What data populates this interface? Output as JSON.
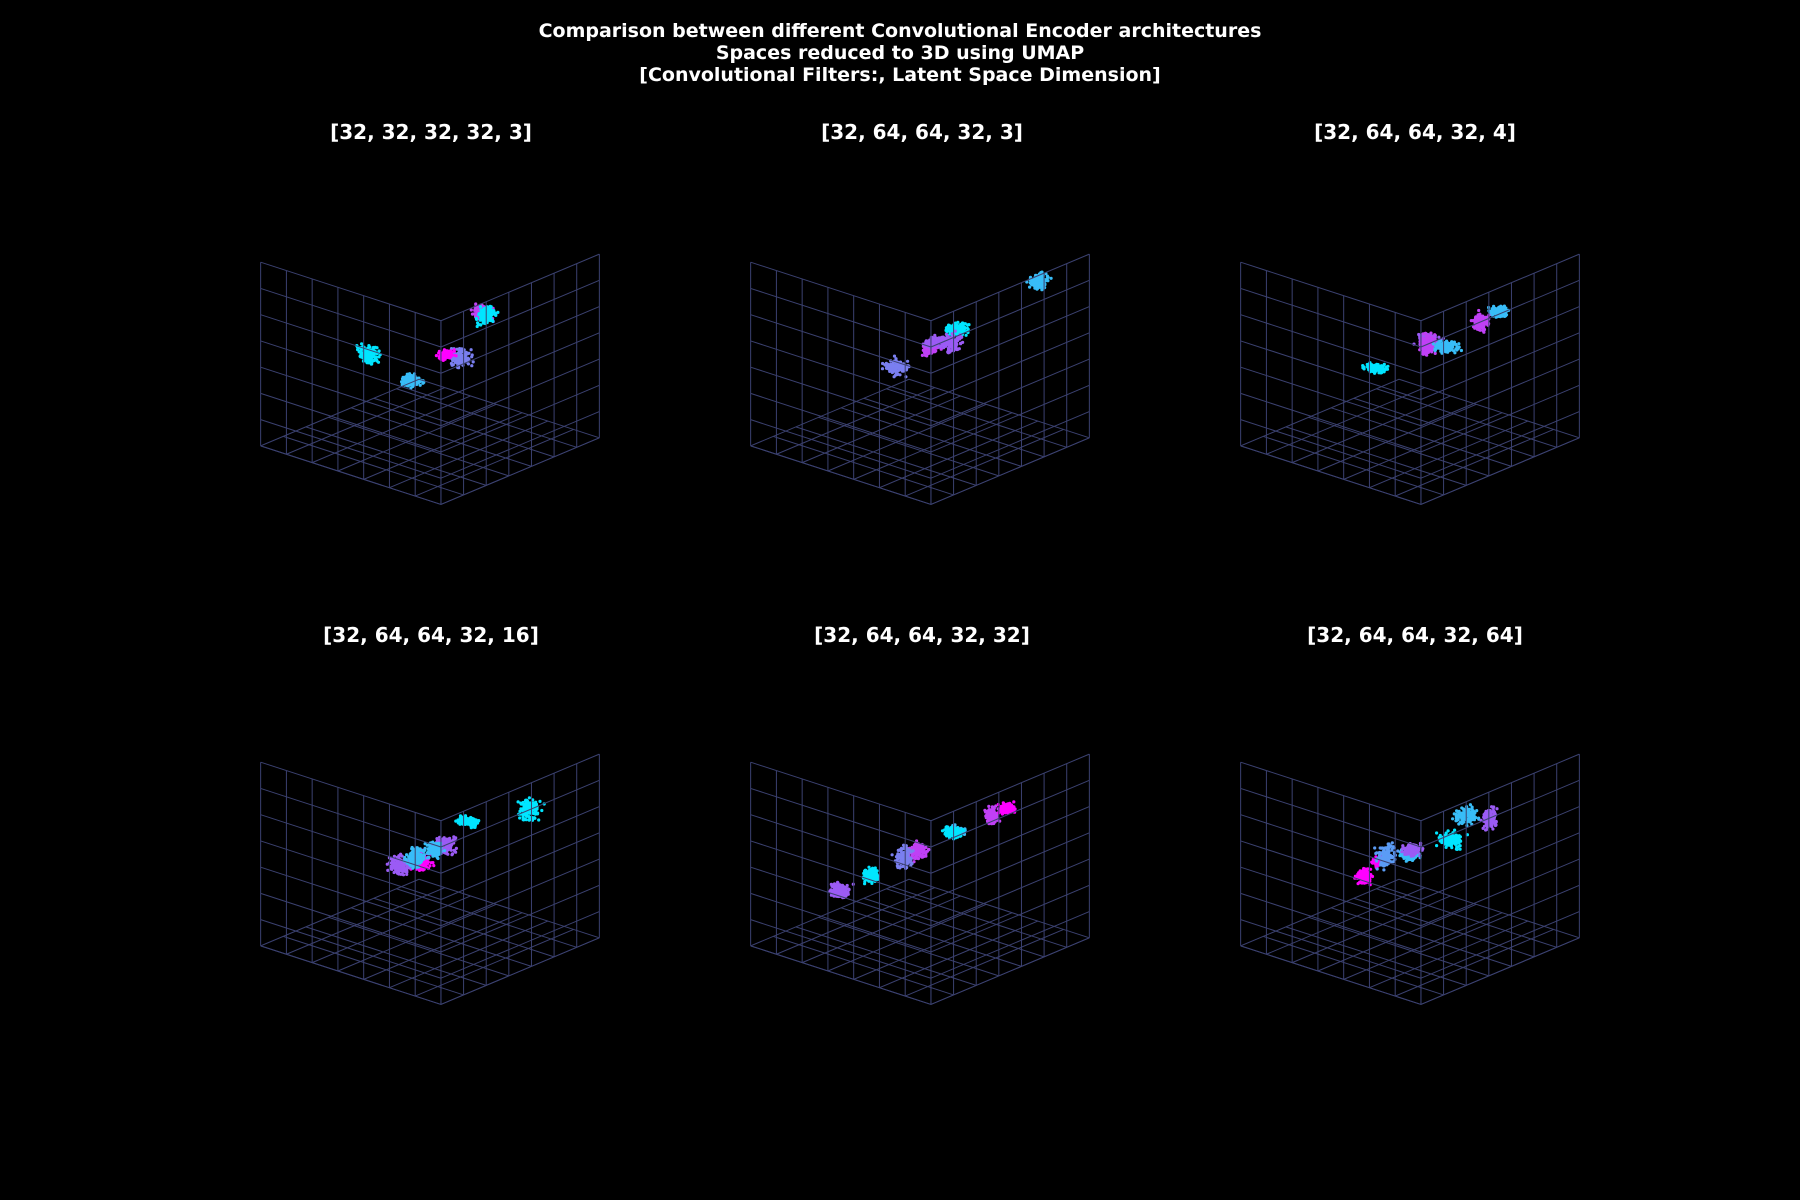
{
  "figure": {
    "title_lines": [
      "Comparison between different Convolutional Encoder architectures",
      "Spaces reduced to 3D using UMAP",
      "[Convolutional Filters:, Latent Space Dimension]"
    ],
    "background": "#000000",
    "colormap": "cool",
    "cluster_colors": [
      "#00e5ff",
      "#38bdf8",
      "#5b9cf6",
      "#7a7ff0",
      "#9b5bf5",
      "#c040f5",
      "#ff00ff"
    ],
    "grid_color": "#3b4170"
  },
  "chart_data": [
    {
      "type": "scatter",
      "projection": "3d",
      "title": "[32, 32, 32, 32, 3]",
      "grid": true,
      "clusters": [
        {
          "x": -0.85,
          "y": 0.55,
          "z": 0.15,
          "color_index": 1
        },
        {
          "x": -0.35,
          "y": 0.65,
          "z": 0.25,
          "color_index": 3
        },
        {
          "x": -0.15,
          "y": 0.3,
          "z": 0.1,
          "color_index": 6
        },
        {
          "x": 0.45,
          "y": 0.2,
          "z": 0.3,
          "color_index": 5
        },
        {
          "x": 0.2,
          "y": 0.45,
          "z": 0.45,
          "color_index": 0
        },
        {
          "x": -0.1,
          "y": -0.6,
          "z": -0.2,
          "color_index": 0
        }
      ]
    },
    {
      "type": "scatter",
      "projection": "3d",
      "title": "[32, 64, 64, 32, 3]",
      "grid": true,
      "clusters": [
        {
          "x": -0.55,
          "y": 0.6,
          "z": 0.4,
          "color_index": 5
        },
        {
          "x": 0.65,
          "y": 0.75,
          "z": 0.75,
          "color_index": 1
        },
        {
          "x": 0.05,
          "y": 0.1,
          "z": 0.1,
          "color_index": 4
        },
        {
          "x": 0.25,
          "y": 0.2,
          "z": 0.2,
          "color_index": 0
        },
        {
          "x": 0.45,
          "y": -0.05,
          "z": -0.1,
          "color_index": 4
        },
        {
          "x": 0.05,
          "y": -0.3,
          "z": -0.3,
          "color_index": 3
        }
      ]
    },
    {
      "type": "scatter",
      "projection": "3d",
      "title": "[32, 64, 64, 32, 4]",
      "grid": true,
      "clusters": [
        {
          "x": 0.2,
          "y": 0.8,
          "z": 0.6,
          "color_index": 1
        },
        {
          "x": -0.35,
          "y": 0.5,
          "z": 0.4,
          "color_index": 4
        },
        {
          "x": -0.65,
          "y": 0.2,
          "z": 0.1,
          "color_index": 0
        },
        {
          "x": 0.1,
          "y": 0.1,
          "z": 0.05,
          "color_index": 5
        },
        {
          "x": 0.55,
          "y": 0.3,
          "z": 0.2,
          "color_index": 5
        },
        {
          "x": 0.8,
          "y": -0.3,
          "z": -0.35,
          "color_index": 1
        }
      ]
    },
    {
      "type": "scatter",
      "projection": "3d",
      "title": "[32, 64, 64, 32, 16]",
      "grid": true,
      "clusters": [
        {
          "x": -0.55,
          "y": 0.9,
          "z": 0.8,
          "color_index": 0
        },
        {
          "x": 0.9,
          "y": 0.3,
          "z": 0.2,
          "color_index": 0
        },
        {
          "x": -0.4,
          "y": 0.25,
          "z": 0.1,
          "color_index": 6
        },
        {
          "x": 0.0,
          "y": 0.15,
          "z": 0.1,
          "color_index": 4
        },
        {
          "x": 0.1,
          "y": -0.05,
          "z": -0.05,
          "color_index": 1
        },
        {
          "x": -0.05,
          "y": -0.3,
          "z": -0.25,
          "color_index": 4
        },
        {
          "x": 0.1,
          "y": -0.25,
          "z": -0.2,
          "color_index": 1
        }
      ]
    },
    {
      "type": "scatter",
      "projection": "3d",
      "title": "[32, 64, 64, 32, 32]",
      "grid": true,
      "clusters": [
        {
          "x": -0.85,
          "y": 0.2,
          "z": 0.1,
          "color_index": 0
        },
        {
          "x": 0.05,
          "y": 0.75,
          "z": 0.6,
          "color_index": 5
        },
        {
          "x": 0.25,
          "y": 0.75,
          "z": 0.6,
          "color_index": 6
        },
        {
          "x": 0.05,
          "y": 0.35,
          "z": 0.3,
          "color_index": 1
        },
        {
          "x": 0.25,
          "y": 0.15,
          "z": 0.15,
          "color_index": 0
        },
        {
          "x": 0.2,
          "y": -0.2,
          "z": -0.15,
          "color_index": 5
        },
        {
          "x": 0.25,
          "y": -0.4,
          "z": -0.3,
          "color_index": 3
        },
        {
          "x": -0.05,
          "y": -0.85,
          "z": -0.7,
          "color_index": 4
        }
      ]
    },
    {
      "type": "scatter",
      "projection": "3d",
      "title": "[32, 64, 64, 32, 64]",
      "grid": true,
      "clusters": [
        {
          "x": -0.2,
          "y": 0.8,
          "z": 0.7,
          "color_index": 1
        },
        {
          "x": 0.5,
          "y": 0.45,
          "z": 0.3,
          "color_index": 4
        },
        {
          "x": -0.7,
          "y": 0.1,
          "z": 0.0,
          "color_index": 6
        },
        {
          "x": 0.0,
          "y": 0.0,
          "z": -0.05,
          "color_index": 1
        },
        {
          "x": 0.25,
          "y": -0.2,
          "z": -0.15,
          "color_index": 4
        },
        {
          "x": -0.05,
          "y": -0.3,
          "z": -0.2,
          "color_index": 6
        },
        {
          "x": 0.15,
          "y": -0.4,
          "z": -0.25,
          "color_index": 2
        },
        {
          "x": 0.85,
          "y": -0.3,
          "z": -0.3,
          "color_index": 0
        }
      ]
    }
  ]
}
